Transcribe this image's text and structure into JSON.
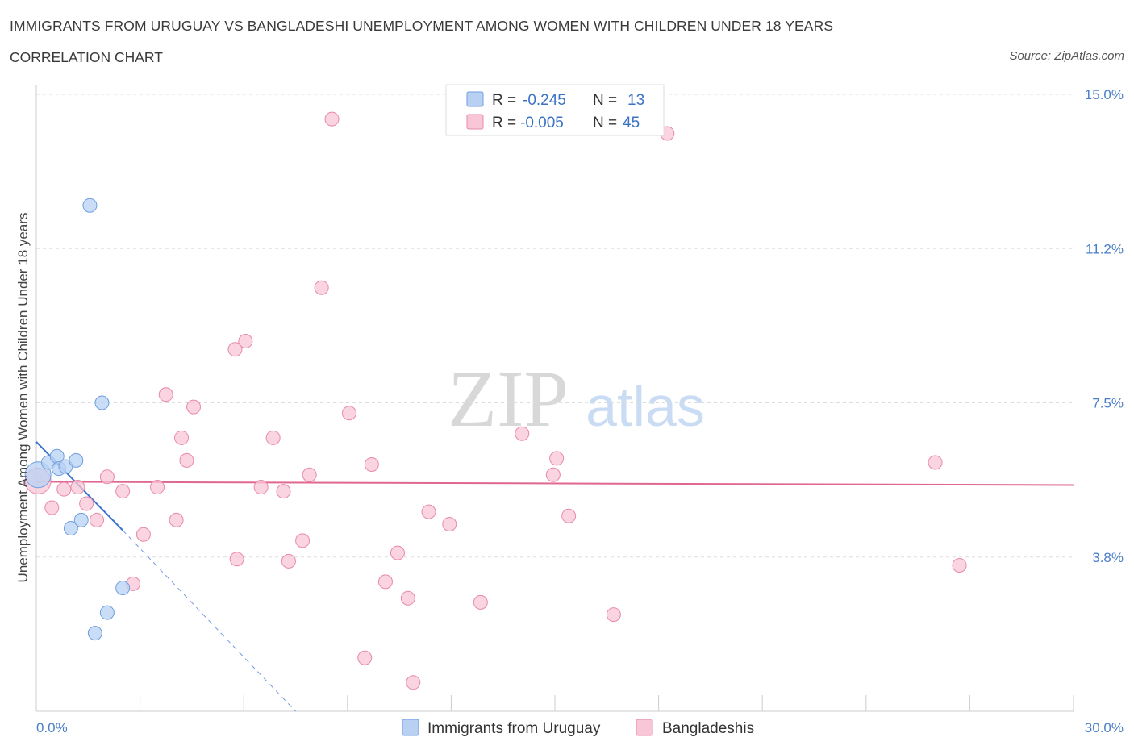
{
  "header": {
    "title": "IMMIGRANTS FROM URUGUAY VS BANGLADESHI UNEMPLOYMENT AMONG WOMEN WITH CHILDREN UNDER 18 YEARS",
    "subtitle": "CORRELATION CHART",
    "source": "Source: ZipAtlas.com"
  },
  "watermark": {
    "zip": "ZIP",
    "atlas": "atlas"
  },
  "colors": {
    "blue_fill": "#b8d1f3",
    "blue_stroke": "#6f9ee0",
    "blue_line": "#3a6fcf",
    "pink_fill": "#f8c6d6",
    "pink_stroke": "#e88aa8",
    "pink_line": "#e0678f",
    "tick_text": "#4a7fc8",
    "grid": "#dddddd"
  },
  "chart_data": {
    "type": "scatter",
    "title": "IMMIGRANTS FROM URUGUAY VS BANGLADESHI UNEMPLOYMENT AMONG WOMEN WITH CHILDREN UNDER 18 YEARS",
    "xlabel": "",
    "ylabel": "Unemployment Among Women with Children Under 18 years",
    "xlim": [
      0,
      30
    ],
    "ylim": [
      0,
      15
    ],
    "x_tick_labels": [
      {
        "value": 0,
        "label": "0.0%"
      },
      {
        "value": 30,
        "label": "30.0%"
      }
    ],
    "y_ticks": [
      {
        "value": 3.75,
        "label": "3.8%"
      },
      {
        "value": 7.5,
        "label": "7.5%"
      },
      {
        "value": 11.25,
        "label": "11.2%"
      },
      {
        "value": 15.0,
        "label": "15.0%"
      }
    ],
    "legend": {
      "position": "top-center",
      "rows": [
        {
          "r_label": "R =",
          "r_value": "-0.245",
          "n_label": "N =",
          "n_value": "13"
        },
        {
          "r_label": "R =",
          "r_value": "-0.005",
          "n_label": "N =",
          "n_value": "45"
        }
      ]
    },
    "series": [
      {
        "name": "Immigrants from Uruguay",
        "color": "blue",
        "points": [
          [
            0.05,
            5.75
          ],
          [
            0.35,
            6.05
          ],
          [
            0.6,
            6.2
          ],
          [
            0.65,
            5.9
          ],
          [
            0.85,
            5.95
          ],
          [
            1.15,
            6.1
          ],
          [
            1.55,
            12.3
          ],
          [
            1.9,
            7.5
          ],
          [
            1.0,
            4.45
          ],
          [
            1.3,
            4.65
          ],
          [
            2.5,
            3.0
          ],
          [
            2.05,
            2.4
          ],
          [
            1.7,
            1.9
          ]
        ],
        "trend": {
          "solid": [
            [
              0,
              6.55
            ],
            [
              2.5,
              4.4
            ]
          ],
          "dashed": [
            [
              2.5,
              4.4
            ],
            [
              7.5,
              0.0
            ]
          ]
        }
      },
      {
        "name": "Bangladeshis",
        "color": "pink",
        "points": [
          [
            0.05,
            5.6
          ],
          [
            0.45,
            4.95
          ],
          [
            0.8,
            5.4
          ],
          [
            1.2,
            5.45
          ],
          [
            1.45,
            5.05
          ],
          [
            1.75,
            4.65
          ],
          [
            2.05,
            5.7
          ],
          [
            2.5,
            5.35
          ],
          [
            2.8,
            3.1
          ],
          [
            3.1,
            4.3
          ],
          [
            3.5,
            5.45
          ],
          [
            3.75,
            7.7
          ],
          [
            4.05,
            4.65
          ],
          [
            4.2,
            6.65
          ],
          [
            4.55,
            7.4
          ],
          [
            4.35,
            6.1
          ],
          [
            5.75,
            8.8
          ],
          [
            5.8,
            3.7
          ],
          [
            6.05,
            9.0
          ],
          [
            6.5,
            5.45
          ],
          [
            6.85,
            6.65
          ],
          [
            7.15,
            5.35
          ],
          [
            7.3,
            3.65
          ],
          [
            7.7,
            4.15
          ],
          [
            7.9,
            5.75
          ],
          [
            8.25,
            10.3
          ],
          [
            8.55,
            14.4
          ],
          [
            9.05,
            7.25
          ],
          [
            9.5,
            1.3
          ],
          [
            9.7,
            6.0
          ],
          [
            10.1,
            3.15
          ],
          [
            10.45,
            3.85
          ],
          [
            10.75,
            2.75
          ],
          [
            10.9,
            0.7
          ],
          [
            11.35,
            4.85
          ],
          [
            11.95,
            4.55
          ],
          [
            12.85,
            2.65
          ],
          [
            14.05,
            6.75
          ],
          [
            14.95,
            5.75
          ],
          [
            15.05,
            6.15
          ],
          [
            15.4,
            4.75
          ],
          [
            16.7,
            2.35
          ],
          [
            18.25,
            14.05
          ],
          [
            26.0,
            6.05
          ],
          [
            26.7,
            3.55
          ]
        ],
        "trend": {
          "solid": [
            [
              0,
              5.58
            ],
            [
              30,
              5.5
            ]
          ]
        }
      }
    ]
  },
  "bottom_legend": [
    {
      "label": "Immigrants from Uruguay",
      "color": "blue"
    },
    {
      "label": "Bangladeshis",
      "color": "pink"
    }
  ]
}
